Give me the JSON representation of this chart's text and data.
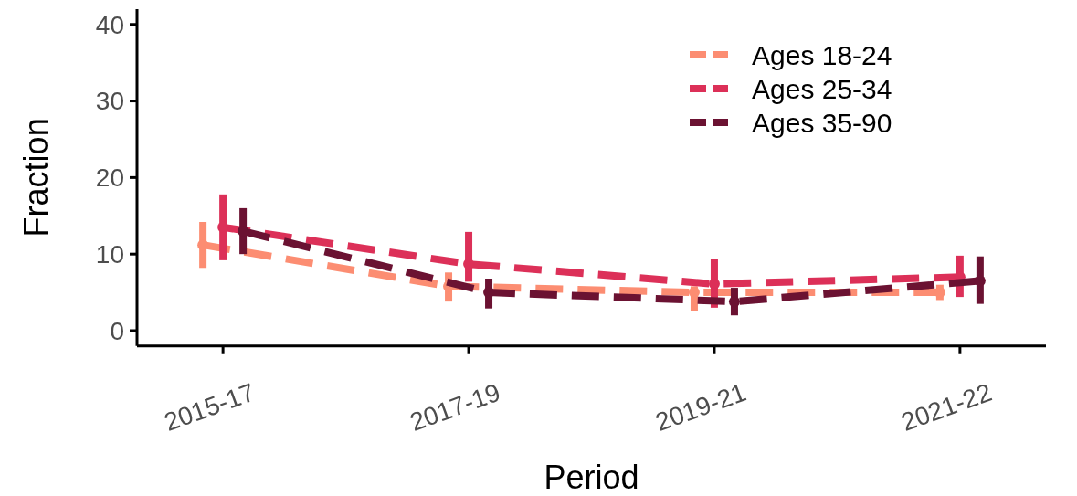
{
  "chart_data": {
    "type": "line",
    "xlabel": "Period",
    "ylabel": "Fraction",
    "categories": [
      "2015-17",
      "2017-19",
      "2019-21",
      "2021-22"
    ],
    "ylim": [
      -2,
      42
    ],
    "yticks": [
      0,
      10,
      20,
      30,
      40
    ],
    "grid": false,
    "legend": "top right",
    "marker": "circle",
    "line_style": "dashed",
    "series": [
      {
        "name": "Ages 18-24",
        "color": "#fc8d72",
        "values": [
          11.2,
          5.8,
          5.0,
          5.0
        ],
        "errors": [
          [
            8.2,
            14.2
          ],
          [
            3.8,
            7.6
          ],
          [
            2.6,
            5.8
          ],
          [
            4.0,
            6.0
          ]
        ]
      },
      {
        "name": "Ages 25-34",
        "color": "#dc3058",
        "values": [
          13.5,
          8.7,
          6.1,
          7.0
        ],
        "errors": [
          [
            9.2,
            17.8
          ],
          [
            6.4,
            12.9
          ],
          [
            3.0,
            9.4
          ],
          [
            4.4,
            9.8
          ]
        ]
      },
      {
        "name": "Ages 35-90",
        "color": "#6b1232",
        "values": [
          13.0,
          5.0,
          3.8,
          6.5
        ],
        "errors": [
          [
            10.0,
            16.0
          ],
          [
            2.9,
            6.8
          ],
          [
            2.0,
            5.6
          ],
          [
            3.5,
            9.7
          ]
        ]
      }
    ]
  }
}
